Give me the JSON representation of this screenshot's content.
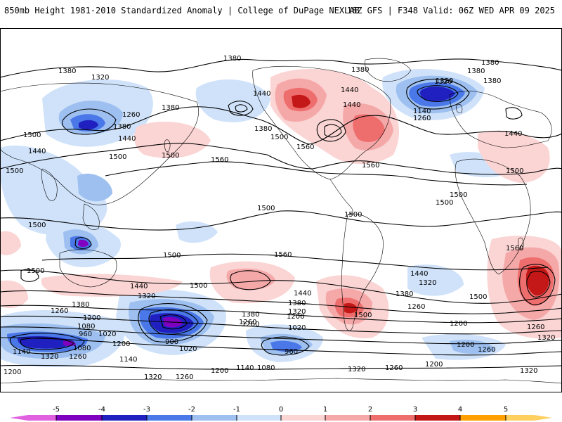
{
  "header": {
    "title": "850mb Height 1981-2010 Standardized Anomaly | College of DuPage NEXLAB",
    "run_info": "18Z GFS | F348 Valid: 06Z WED APR 09 2025"
  },
  "colors": {
    "neg5": "#e060e0",
    "neg4": "#8000c0",
    "neg3": "#2020c0",
    "neg2": "#4a78e8",
    "neg1": "#9ec0f0",
    "neg05": "#cfe2fa",
    "zero": "#ffffff",
    "pos05": "#fbd4d4",
    "pos1": "#f5a8a8",
    "pos2": "#ee6e6e",
    "pos3": "#c41818",
    "pos4": "#ffa000",
    "pos5": "#ffd060"
  },
  "contour_labels": [
    "1380",
    "1380",
    "1320",
    "1260",
    "1380",
    "1380",
    "1500",
    "1440",
    "1500",
    "1380",
    "1440",
    "1380",
    "1320",
    "1500",
    "1440",
    "1560",
    "1440",
    "1380",
    "1380",
    "1320",
    "1140",
    "1260",
    "1440",
    "1500",
    "1500",
    "1560",
    "1500",
    "1500",
    "1500",
    "1500",
    "1500",
    "1500",
    "1560",
    "1500",
    "1440",
    "1500",
    "1560",
    "1500",
    "1440",
    "1380",
    "1320",
    "1380",
    "1260",
    "1260",
    "1200",
    "1080",
    "960",
    "1020",
    "1140",
    "1080",
    "1200",
    "1260",
    "1320",
    "1140",
    "1260",
    "1320",
    "1200",
    "1140",
    "1080",
    "960",
    "1020",
    "900",
    "1020",
    "1260",
    "1380",
    "1440",
    "1320",
    "1200",
    "1200",
    "1260",
    "1320",
    "1260",
    "1200",
    "1320",
    "1500",
    "1560",
    "1440",
    "1380",
    "1320",
    "1260",
    "1200",
    "1200",
    "1260",
    "1320",
    "1380",
    "1500"
  ],
  "colorbar": {
    "ticks": [
      "-5",
      "-4",
      "-3",
      "-2",
      "-1",
      "0",
      "1",
      "2",
      "3",
      "4",
      "5"
    ]
  }
}
